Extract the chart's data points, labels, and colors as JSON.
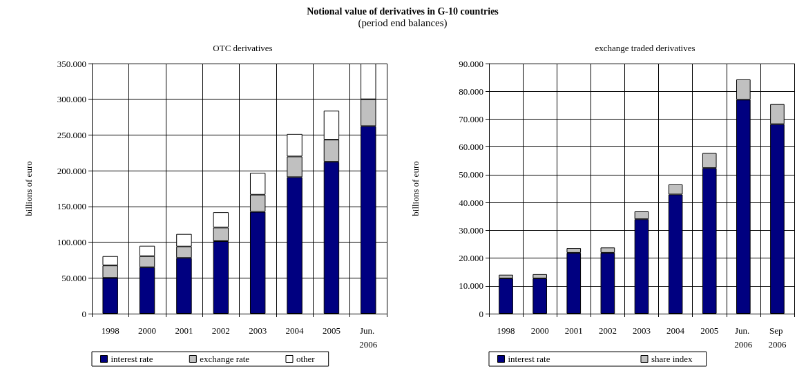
{
  "chart_data": [
    {
      "type": "bar",
      "title": "OTC derivatives",
      "ylabel": "billions of euro",
      "annotations": [
        "Notional value of derivatives in G-10 countries",
        "(period end balances)"
      ],
      "categories": [
        "1998",
        "2000",
        "2001",
        "2002",
        "2003",
        "2004",
        "2005",
        "Jun. 2006"
      ],
      "stacked": true,
      "series": [
        {
          "name": "interest rate",
          "color": "#000080",
          "values": [
            50000,
            65000,
            78000,
            101500,
            142500,
            191000,
            212500,
            262500
          ]
        },
        {
          "name": "exchange rate",
          "color": "#c0c0c0",
          "values": [
            17500,
            15500,
            16000,
            19000,
            24000,
            29000,
            31000,
            37500
          ]
        },
        {
          "name": "other",
          "color": "#ffffff",
          "values": [
            13000,
            14500,
            17500,
            21500,
            30500,
            31500,
            40500,
            50000
          ]
        }
      ],
      "ylim": [
        0,
        350000
      ],
      "yticks": [
        {
          "value": 0,
          "label": "0"
        },
        {
          "value": 50000,
          "label": "50.000"
        },
        {
          "value": 100000,
          "label": "100.000"
        },
        {
          "value": 150000,
          "label": "150.000"
        },
        {
          "value": 200000,
          "label": "200.000"
        },
        {
          "value": 250000,
          "label": "250.000"
        },
        {
          "value": 300000,
          "label": "300.000"
        },
        {
          "value": 350000,
          "label": "350.000"
        }
      ],
      "grid": true,
      "legend": "bottom"
    },
    {
      "type": "bar",
      "title": "exchange traded derivatives",
      "ylabel": "billions of euro",
      "categories": [
        "1998",
        "2000",
        "2001",
        "2002",
        "2003",
        "2004",
        "2005",
        "Jun. 2006",
        "Sep 2006"
      ],
      "stacked": true,
      "series": [
        {
          "name": "interest rate",
          "color": "#000080",
          "values": [
            12700,
            12700,
            21900,
            21900,
            34000,
            42900,
            52400,
            77000,
            68200
          ]
        },
        {
          "name": "share index",
          "color": "#c0c0c0",
          "values": [
            1300,
            1500,
            1700,
            1900,
            2800,
            3600,
            5400,
            7300,
            7200
          ]
        }
      ],
      "ylim": [
        0,
        90000
      ],
      "yticks": [
        {
          "value": 0,
          "label": "0"
        },
        {
          "value": 10000,
          "label": "10.000"
        },
        {
          "value": 20000,
          "label": "20.000"
        },
        {
          "value": 30000,
          "label": "30.000"
        },
        {
          "value": 40000,
          "label": "40.000"
        },
        {
          "value": 50000,
          "label": "50.000"
        },
        {
          "value": 60000,
          "label": "60.000"
        },
        {
          "value": 70000,
          "label": "70.000"
        },
        {
          "value": 80000,
          "label": "80.000"
        },
        {
          "value": 90000,
          "label": "90.000"
        }
      ],
      "grid": true,
      "legend": "bottom"
    }
  ]
}
